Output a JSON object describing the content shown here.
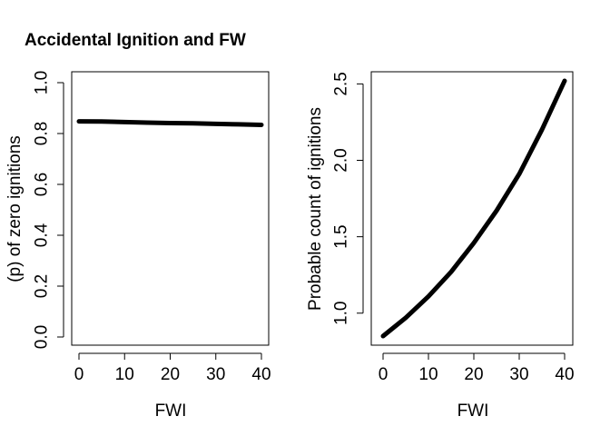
{
  "chart_data": [
    {
      "type": "line",
      "title": "Accidental Ignition and FW",
      "xlabel": "FWI",
      "ylabel": "(p) of zero ignitions",
      "xlim": [
        0,
        40
      ],
      "ylim": [
        0,
        1
      ],
      "xticks": [
        "0",
        "10",
        "20",
        "30",
        "40"
      ],
      "yticks": [
        "0.0",
        "0.2",
        "0.4",
        "0.6",
        "0.8",
        "1.0"
      ],
      "grid": false,
      "series": [
        {
          "x": [
            0,
            5,
            10,
            15,
            20,
            25,
            30,
            35,
            40
          ],
          "y": [
            0.848,
            0.847,
            0.845,
            0.843,
            0.841,
            0.84,
            0.838,
            0.836,
            0.834
          ]
        }
      ]
    },
    {
      "type": "line",
      "title": "",
      "xlabel": "FWI",
      "ylabel": "Probable count of ignitions",
      "xlim": [
        0,
        40
      ],
      "ylim": [
        0.85,
        2.52
      ],
      "xticks": [
        "0",
        "10",
        "20",
        "30",
        "40"
      ],
      "yticks": [
        "1.0",
        "1.5",
        "2.0",
        "2.5"
      ],
      "grid": false,
      "series": [
        {
          "x": [
            0,
            5,
            10,
            15,
            20,
            25,
            30,
            35,
            40
          ],
          "y": [
            0.85,
            0.97,
            1.11,
            1.27,
            1.46,
            1.67,
            1.91,
            2.2,
            2.52
          ]
        }
      ]
    }
  ]
}
